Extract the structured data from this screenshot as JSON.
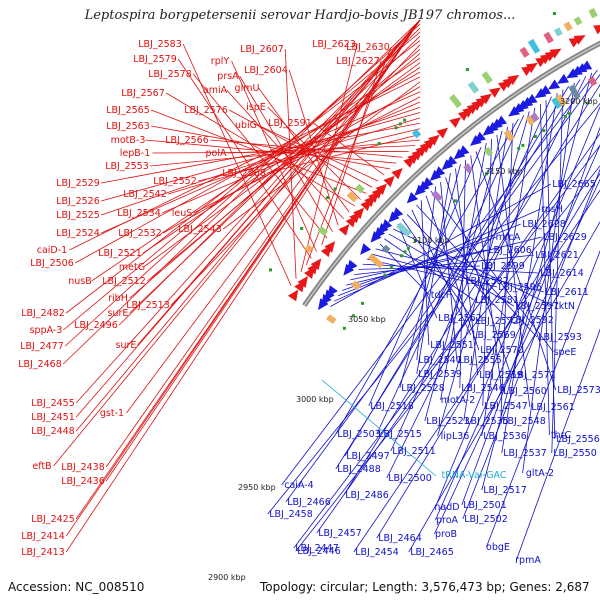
{
  "title": "Leptospira borgpetersenii serovar Hardjo-bovis JB197 chromos...",
  "footer": {
    "accession": "Accession: NC_008510",
    "topology": "Topology: circular; Length: 3,576,473 bp; Genes: 2,687"
  },
  "colors": {
    "left_label": "#e01010",
    "right_label": "#1010cc",
    "rna_label": "#22aacc",
    "backbone": "#888888",
    "forward_arrow": "#e81818",
    "reverse_arrow": "#1a1ae0"
  },
  "ticks": [
    "3200 kbp",
    "3150 kbp",
    "3100 kbp",
    "3050 kbp",
    "3000 kbp",
    "2950 kbp",
    "2900 kbp"
  ],
  "left_labels": [
    "LBJ_2583",
    "LBJ_2607",
    "LBJ_2623",
    "LBJ_2630",
    "LBJ_2579",
    "rplY",
    "LBJ_2627",
    "LBJ_2578",
    "prsA",
    "LBJ_2604",
    "amiA",
    "glmU",
    "LBJ_2567",
    "ispE",
    "LBJ_2565",
    "LBJ_2576",
    "ubiG",
    "LBJ_2591",
    "LBJ_2563",
    "motB-3",
    "LBJ_2566",
    "lepB-1",
    "polA",
    "LBJ_2553",
    "LBJ_2568",
    "LBJ_2552",
    "LBJ_2529",
    "LBJ_2542",
    "LBJ_2526",
    "LBJ_2525",
    "LBJ_2534",
    "leuS",
    "LBJ_2524",
    "LBJ_2532",
    "LBJ_2543",
    "caiD-1",
    "LBJ_2506",
    "LBJ_2521",
    "metG",
    "nusB",
    "LBJ_2512",
    "ribH",
    "LBJ_2513",
    "LBJ_2482",
    "surE",
    "sppA-3",
    "LBJ_2496",
    "LBJ_2477",
    "surE",
    "LBJ_2468",
    "LBJ_2455",
    "LBJ_2451",
    "gst-1",
    "LBJ_2448",
    "eftB",
    "LBJ_2438",
    "LBJ_2436",
    "LBJ_2425",
    "LBJ_2414",
    "LBJ_2413"
  ],
  "right_labels": [
    "LBJ_2665",
    "rpsH",
    "LBJ_2628",
    "mrcA",
    "LBJ_2629",
    "LBJ_2606",
    "LBJ_2621",
    "LBJ_2599",
    "LBJ_2614",
    "LBJ_2582",
    "LBJ_2596",
    "LBJ_2611",
    "tdcF",
    "LBJ_2581",
    "LBJ_2597",
    "tktN",
    "LBJ_2562",
    "LBJ_2572",
    "LBJ_2592",
    "LBJ_2569",
    "LBJ_2593",
    "LBJ_2551",
    "LBJ_2570",
    "speE",
    "LBJ_2540",
    "LBJ_2555",
    "LBJ_2571",
    "LBJ_2539",
    "LBJ_2559",
    "LBJ_2528",
    "LBJ_2546",
    "LBJ_2560",
    "LBJ_2573",
    "LBJ_2518",
    "motA-2",
    "LBJ_2547",
    "LBJ_2561",
    "LBJ_2523",
    "LBJ_2535",
    "LBJ_2548",
    "LBJ_2503",
    "LBJ_2515",
    "lipL36",
    "LBJ_2536",
    "thrC",
    "LBJ_2556",
    "LBJ_2511",
    "LBJ_2537",
    "LBJ_2550",
    "LBJ_2497",
    "gltA-2",
    "LBJ_2488",
    "LBJ_2500",
    "LBJ_2517",
    "caiA-4",
    "LBJ_2466",
    "LBJ_2486",
    "nadD",
    "LBJ_2501",
    "LBJ_2458",
    "proA",
    "LBJ_2502",
    "LBJ_2457",
    "proB",
    "LBJ_2447",
    "LBJ_2464",
    "obgE",
    "LBJ_2446",
    "LBJ_2454",
    "LBJ_2465",
    "rpmA"
  ],
  "rna_labels": [
    "tRNA-Val-GAC"
  ]
}
